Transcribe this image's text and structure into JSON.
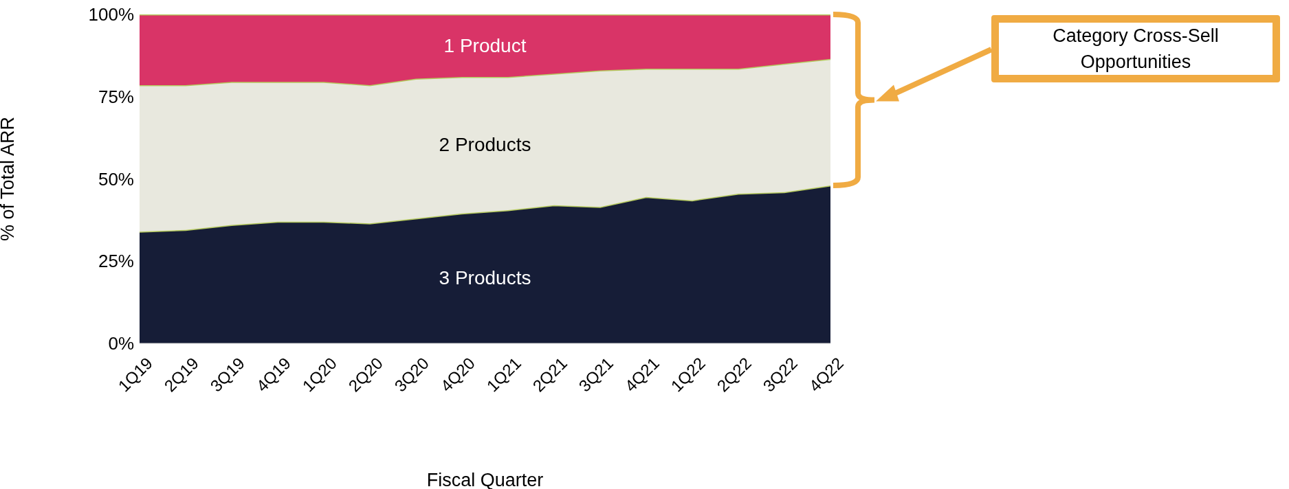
{
  "chart_data": {
    "type": "area",
    "stacked": true,
    "xlabel": "Fiscal Quarter",
    "ylabel": "% of Total ARR",
    "categories": [
      "1Q19",
      "2Q19",
      "3Q19",
      "4Q19",
      "1Q20",
      "2Q20",
      "3Q20",
      "4Q20",
      "1Q21",
      "2Q21",
      "3Q21",
      "4Q21",
      "1Q22",
      "2Q22",
      "3Q22",
      "4Q22"
    ],
    "series": [
      {
        "name": "3 Products",
        "color": "#161d37",
        "values": [
          34,
          34.5,
          36,
          37,
          37,
          36.5,
          38,
          39.5,
          40.5,
          42,
          41.5,
          44.5,
          43.5,
          45.5,
          46,
          48
        ]
      },
      {
        "name": "2 Products",
        "color": "#e8e8de",
        "values": [
          44.5,
          44,
          43.5,
          42.5,
          42.5,
          42,
          42.5,
          41.5,
          40.5,
          40,
          41.5,
          39,
          40,
          38,
          39,
          38.5
        ]
      },
      {
        "name": "1 Product",
        "color": "#d93467",
        "values": [
          21.5,
          21.5,
          20.5,
          20.5,
          20.5,
          21.5,
          19.5,
          19,
          19,
          18,
          17,
          16.5,
          16.5,
          16.5,
          15,
          13.5
        ]
      }
    ],
    "ylim": [
      0,
      100
    ],
    "yticks": [
      {
        "value": 0,
        "label": "0%"
      },
      {
        "value": 25,
        "label": "25%"
      },
      {
        "value": 50,
        "label": "50%"
      },
      {
        "value": 75,
        "label": "75%"
      },
      {
        "value": 100,
        "label": "100%"
      }
    ],
    "grid": false,
    "legend": false,
    "annotations": [
      "Category Cross-Sell Opportunities"
    ]
  }
}
